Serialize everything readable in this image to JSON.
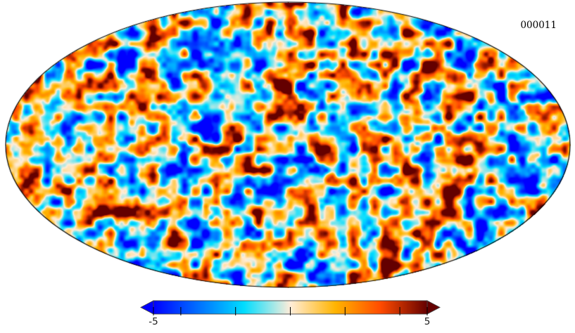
{
  "figure": {
    "frame_label": "000011",
    "background_color": "#ffffff"
  },
  "chart_data": {
    "type": "heatmap",
    "projection": "mollweide",
    "title": "",
    "description": "All-sky Mollweide projection map of a CMB-like Gaussian random temperature field, frame 000011",
    "value_range": [
      -5,
      5
    ],
    "grid": false,
    "legend_position": "bottom-colorbar",
    "colormap": {
      "name": "planck",
      "stops": [
        {
          "pos": 0.0,
          "color": "#0000ff"
        },
        {
          "pos": 0.165,
          "color": "#0070ff"
        },
        {
          "pos": 0.33,
          "color": "#00ddff"
        },
        {
          "pos": 0.5,
          "color": "#ffedd9"
        },
        {
          "pos": 0.665,
          "color": "#ffb400"
        },
        {
          "pos": 0.83,
          "color": "#ff4b00"
        },
        {
          "pos": 1.0,
          "color": "#640000"
        }
      ]
    },
    "colorbar": {
      "min_label": "-5",
      "max_label": "5",
      "tick_values": [
        -5,
        -4,
        -2,
        0,
        2,
        4,
        5
      ],
      "extend_arrows": true,
      "outline_color": "#444444",
      "tick_color": "#000000"
    },
    "field": {
      "octaves": [
        {
          "scale": 15,
          "amp": 1.0,
          "seed": 11
        },
        {
          "scale": 7.5,
          "amp": 0.3,
          "seed": 23
        },
        {
          "scale": 30,
          "amp": 0.6,
          "seed": 37
        }
      ],
      "gain": 0.52
    },
    "map_outline_color": "#000000"
  }
}
